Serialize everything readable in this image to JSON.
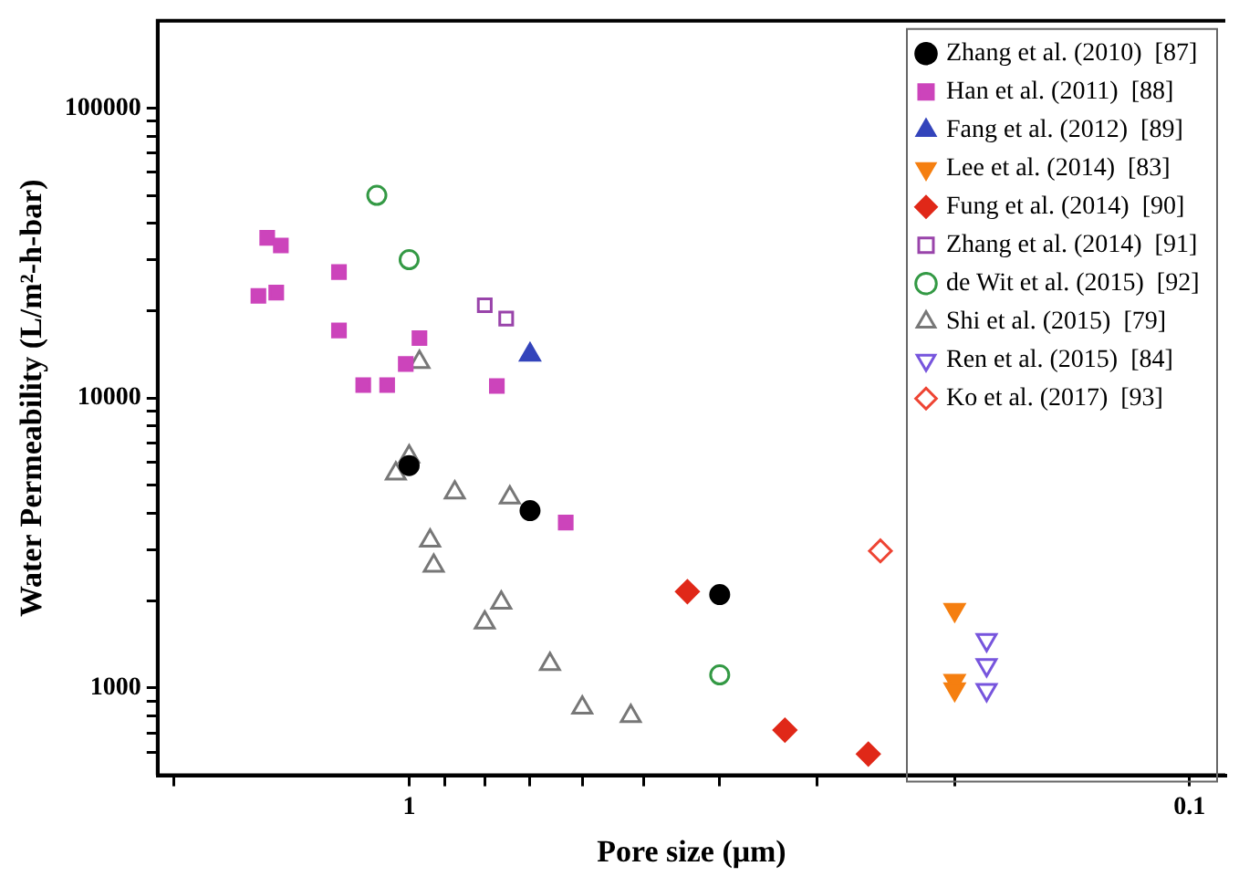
{
  "chart_data": {
    "type": "scatter",
    "xlabel": "Pore size (μm)",
    "ylabel": "Water Permeability (L/m²-h-bar)",
    "log": "xy",
    "grid": false,
    "legend": "top right",
    "xlim": [
      2.1,
      0.09
    ],
    "ylim": [
      500,
      200000
    ],
    "xticks": [
      {
        "value": 2,
        "label": null
      },
      1,
      {
        "value": 0.9,
        "label": null
      },
      {
        "value": 0.8,
        "label": null
      },
      {
        "value": 0.7,
        "label": null
      },
      {
        "value": 0.6,
        "label": null
      },
      {
        "value": 0.5,
        "label": null
      },
      {
        "value": 0.4,
        "label": null
      },
      {
        "value": 0.3,
        "label": null
      },
      {
        "value": 0.2,
        "label": null
      },
      0.1
    ],
    "yticks": [
      {
        "value": 600,
        "label": null
      },
      {
        "value": 700,
        "label": null
      },
      {
        "value": 800,
        "label": null
      },
      {
        "value": 900,
        "label": null
      },
      1000,
      {
        "value": 2000,
        "label": null
      },
      {
        "value": 3000,
        "label": null
      },
      {
        "value": 4000,
        "label": null
      },
      {
        "value": 5000,
        "label": null
      },
      {
        "value": 6000,
        "label": null
      },
      {
        "value": 7000,
        "label": null
      },
      {
        "value": 8000,
        "label": null
      },
      {
        "value": 9000,
        "label": null
      },
      10000,
      {
        "value": 20000,
        "label": null
      },
      {
        "value": 30000,
        "label": null
      },
      {
        "value": 40000,
        "label": null
      },
      {
        "value": 50000,
        "label": null
      },
      {
        "value": 60000,
        "label": null
      },
      {
        "value": 70000,
        "label": null
      },
      {
        "value": 80000,
        "label": null
      },
      {
        "value": 90000,
        "label": null
      },
      100000
    ],
    "series": [
      {
        "name": "Zhang et al. (2010)  [87]",
        "color": "#000000",
        "marker": "circle",
        "x": [
          1.0,
          0.7,
          0.4
        ],
        "values": [
          5850,
          4090,
          2100
        ]
      },
      {
        "name": "Han et al. (2011)  [88]",
        "color": "#cc44bb",
        "marker": "square",
        "x": [
          1.52,
          1.46,
          1.56,
          1.48,
          1.23,
          1.23,
          0.97,
          1.01,
          1.145,
          1.067,
          0.772,
          0.63
        ],
        "values": [
          35700,
          33600,
          22500,
          23100,
          27200,
          17100,
          16100,
          13100,
          11080,
          11080,
          11000,
          3720
        ]
      },
      {
        "name": "Fang et al. (2012)  [89]",
        "color": "#3344bb",
        "marker": "triangle",
        "x": [
          0.7
        ],
        "values": [
          14100
        ]
      },
      {
        "name": "Lee et al. (2014)  [83]",
        "color": "#f57f10",
        "marker": "triangle_down",
        "x": [
          0.2,
          0.2,
          0.2
        ],
        "values": [
          1860,
          1060,
          990
        ]
      },
      {
        "name": "Fung et al. (2014)  [90]",
        "color": "#e02818",
        "marker": "diamond",
        "x": [
          0.44,
          0.33,
          0.258
        ],
        "values": [
          2150,
          716,
          592
        ]
      },
      {
        "name": "Zhang et al. (2014)  [91]",
        "color": "#9944aa",
        "marker": "square_open",
        "x": [
          0.8,
          0.751
        ],
        "values": [
          20900,
          18800
        ]
      },
      {
        "name": "de Wit et al. (2015)  [92]",
        "color": "#339944",
        "marker": "circle_open",
        "x": [
          1.1,
          1.0,
          0.4
        ],
        "values": [
          50000,
          30000,
          1110
        ]
      },
      {
        "name": "Shi et al. (2015)  [79]",
        "color": "#777777",
        "marker": "triangle_open",
        "x": [
          0.97,
          1.0,
          1.04,
          0.874,
          0.743,
          0.94,
          0.93,
          0.762,
          0.8,
          0.66,
          0.6,
          0.52
        ],
        "values": [
          13300,
          6290,
          5490,
          4720,
          4540,
          3220,
          2640,
          1970,
          1680,
          1210,
          855,
          800
        ]
      },
      {
        "name": "Ren et al. (2015)  [84]",
        "color": "#7755dd",
        "marker": "triangle_down_open",
        "x": [
          0.182,
          0.182,
          0.182
        ],
        "values": [
          1465,
          1200,
          986
        ]
      },
      {
        "name": "Ko et al. (2017)  [93]",
        "color": "#ee4433",
        "marker": "diamond_open",
        "x": [
          0.249
        ],
        "values": [
          2970
        ]
      }
    ]
  }
}
